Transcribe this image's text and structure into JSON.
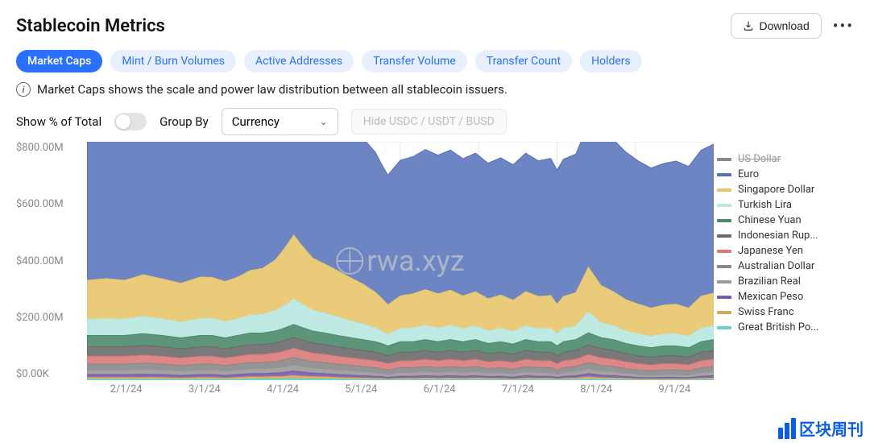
{
  "header": {
    "title": "Stablecoin Metrics",
    "download_label": "Download"
  },
  "tabs": [
    {
      "label": "Market Caps",
      "active": true
    },
    {
      "label": "Mint / Burn Volumes",
      "active": false
    },
    {
      "label": "Active Addresses",
      "active": false
    },
    {
      "label": "Transfer Volume",
      "active": false
    },
    {
      "label": "Transfer Count",
      "active": false
    },
    {
      "label": "Holders",
      "active": false
    }
  ],
  "info_text": "Market Caps shows the scale and power law distribution between all stablecoin issuers.",
  "controls": {
    "toggle_label": "Show % of Total",
    "toggle_on": false,
    "groupby_label": "Group By",
    "groupby_value": "Currency",
    "hide_label": "Hide USDC / USDT / BUSD"
  },
  "chart": {
    "type": "stacked-area",
    "ylim": [
      0,
      800
    ],
    "ytick_labels": [
      "$800.00M",
      "$600.00M",
      "$400.00M",
      "$200.00M",
      "$0.00K"
    ],
    "xtick_labels": [
      "2/1/24",
      "3/1/24",
      "4/1/24",
      "5/1/24",
      "6/1/24",
      "7/1/24",
      "8/1/24",
      "9/1/24"
    ],
    "background_color": "#ffffff",
    "grid_color": "#e8e8e8",
    "watermark": "rwa.xyz",
    "x": [
      0,
      3,
      6,
      9,
      12,
      15,
      18,
      20,
      22,
      24,
      26,
      28,
      30,
      31,
      32,
      33,
      34,
      36,
      38,
      40,
      42,
      44,
      46,
      47,
      48,
      50,
      52,
      54,
      56,
      58,
      60,
      62,
      64,
      66,
      68,
      70,
      72,
      74,
      75,
      76,
      78,
      80,
      82,
      84,
      86,
      88,
      90,
      92,
      94,
      96,
      98,
      100
    ],
    "series": [
      {
        "name": "Euro",
        "color": "#5470b8",
        "values": [
          500,
          510,
          505,
          515,
          500,
          490,
          505,
          510,
          495,
          500,
          520,
          515,
          530,
          545,
          560,
          595,
          570,
          540,
          535,
          525,
          510,
          490,
          470,
          450,
          435,
          455,
          460,
          470,
          465,
          470,
          460,
          465,
          455,
          460,
          455,
          465,
          455,
          460,
          450,
          460,
          465,
          480,
          490,
          510,
          495,
          480,
          470,
          475,
          480,
          475,
          490,
          500
        ]
      },
      {
        "name": "Singapore Dollar",
        "color": "#e8c56a",
        "values": [
          130,
          135,
          130,
          140,
          135,
          130,
          140,
          138,
          135,
          140,
          150,
          155,
          170,
          185,
          200,
          215,
          200,
          175,
          165,
          155,
          145,
          135,
          120,
          110,
          100,
          110,
          115,
          120,
          115,
          118,
          110,
          115,
          108,
          112,
          105,
          115,
          108,
          110,
          100,
          108,
          112,
          150,
          125,
          115,
          105,
          100,
          95,
          98,
          100,
          95,
          108,
          110
        ]
      },
      {
        "name": "Turkish Lira",
        "color": "#b8e8e0",
        "values": [
          55,
          56,
          55,
          58,
          55,
          53,
          56,
          57,
          54,
          55,
          60,
          62,
          68,
          72,
          78,
          85,
          80,
          70,
          66,
          62,
          56,
          52,
          46,
          42,
          38,
          44,
          46,
          48,
          46,
          48,
          44,
          46,
          42,
          45,
          42,
          46,
          44,
          45,
          40,
          44,
          46,
          70,
          50,
          46,
          42,
          40,
          38,
          39,
          40,
          38,
          45,
          46
        ]
      },
      {
        "name": "Chinese Yuan",
        "color": "#4a8a6a",
        "values": [
          38,
          38,
          38,
          39,
          38,
          37,
          38,
          38,
          37,
          38,
          39,
          39,
          40,
          41,
          42,
          43,
          42,
          40,
          39,
          38,
          37,
          36,
          35,
          34,
          33,
          35,
          35,
          36,
          35,
          36,
          35,
          36,
          34,
          35,
          34,
          36,
          35,
          35,
          33,
          35,
          36,
          40,
          37,
          36,
          34,
          33,
          32,
          33,
          33,
          32,
          35,
          36
        ]
      },
      {
        "name": "Indonesian Rup...",
        "color": "#6a6a6a",
        "values": [
          32,
          32,
          32,
          33,
          32,
          31,
          32,
          32,
          31,
          32,
          33,
          33,
          34,
          35,
          36,
          37,
          36,
          34,
          33,
          32,
          31,
          30,
          29,
          28,
          27,
          29,
          29,
          30,
          29,
          30,
          29,
          30,
          28,
          29,
          28,
          30,
          29,
          29,
          27,
          29,
          30,
          33,
          31,
          30,
          28,
          27,
          26,
          27,
          27,
          26,
          29,
          30
        ]
      },
      {
        "name": "Japanese Yen",
        "color": "#d97a7a",
        "values": [
          26,
          26,
          26,
          27,
          26,
          25,
          26,
          26,
          25,
          26,
          27,
          27,
          28,
          29,
          30,
          31,
          30,
          28,
          27,
          26,
          25,
          24,
          23,
          22,
          21,
          23,
          23,
          24,
          23,
          24,
          23,
          24,
          22,
          23,
          22,
          24,
          23,
          23,
          21,
          23,
          24,
          27,
          25,
          24,
          22,
          21,
          20,
          21,
          21,
          20,
          23,
          24
        ]
      },
      {
        "name": "Australian Dollar",
        "color": "#888888",
        "values": [
          20,
          20,
          20,
          21,
          20,
          19,
          20,
          20,
          19,
          20,
          21,
          21,
          22,
          23,
          24,
          25,
          24,
          22,
          21,
          20,
          19,
          18,
          17,
          16,
          15,
          17,
          17,
          18,
          17,
          18,
          17,
          18,
          16,
          17,
          16,
          18,
          17,
          17,
          15,
          17,
          18,
          21,
          19,
          18,
          16,
          15,
          14,
          15,
          15,
          14,
          17,
          18
        ]
      },
      {
        "name": "Brazilian Real",
        "color": "#999999",
        "values": [
          15,
          15,
          15,
          16,
          15,
          14,
          15,
          15,
          14,
          15,
          16,
          16,
          17,
          18,
          19,
          20,
          19,
          17,
          16,
          15,
          14,
          13,
          12,
          11,
          10,
          12,
          12,
          13,
          12,
          13,
          12,
          13,
          11,
          12,
          11,
          13,
          12,
          12,
          10,
          12,
          13,
          16,
          14,
          13,
          11,
          10,
          9,
          10,
          10,
          9,
          12,
          13
        ]
      },
      {
        "name": "Mexican Peso",
        "color": "#7a5aa8",
        "values": [
          10,
          10,
          10,
          11,
          10,
          9,
          10,
          10,
          9,
          10,
          11,
          11,
          12,
          13,
          14,
          15,
          14,
          12,
          11,
          10,
          9,
          8,
          7,
          6,
          5,
          7,
          7,
          8,
          7,
          8,
          7,
          8,
          6,
          7,
          6,
          8,
          7,
          7,
          5,
          7,
          8,
          11,
          9,
          8,
          6,
          5,
          4,
          5,
          5,
          4,
          7,
          8
        ]
      },
      {
        "name": "Swiss Franc",
        "color": "#d4a860",
        "values": [
          6,
          6,
          6,
          6,
          6,
          5,
          6,
          6,
          5,
          6,
          7,
          7,
          8,
          8,
          9,
          10,
          9,
          8,
          7,
          6,
          5,
          5,
          4,
          4,
          3,
          4,
          4,
          5,
          4,
          5,
          4,
          5,
          4,
          4,
          3,
          5,
          4,
          4,
          3,
          4,
          5,
          7,
          5,
          5,
          4,
          3,
          3,
          3,
          3,
          3,
          4,
          5
        ]
      },
      {
        "name": "Great British Po...",
        "color": "#6ad4c4",
        "values": [
          3,
          3,
          3,
          3,
          3,
          2,
          3,
          3,
          2,
          3,
          4,
          4,
          4,
          4,
          5,
          6,
          5,
          4,
          4,
          3,
          3,
          2,
          2,
          2,
          1,
          2,
          2,
          2,
          2,
          2,
          2,
          2,
          2,
          2,
          1,
          2,
          2,
          2,
          1,
          2,
          2,
          4,
          3,
          2,
          2,
          1,
          1,
          1,
          1,
          1,
          2,
          2
        ]
      }
    ],
    "legend_strike": [
      "US Dollar"
    ],
    "us_dollar_color": "#888888"
  },
  "brand_text": "区块周刊"
}
